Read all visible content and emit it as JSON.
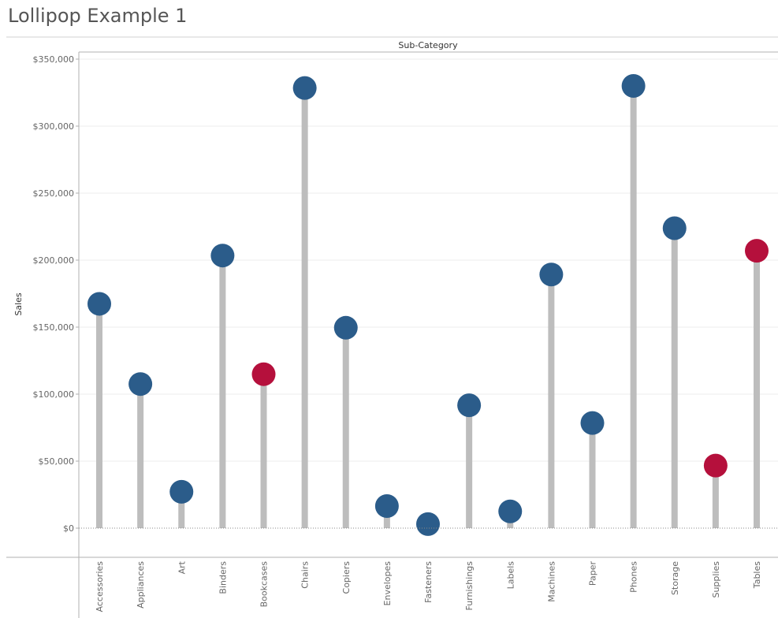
{
  "page": {
    "title": "Lollipop Example 1"
  },
  "chart_data": {
    "type": "lollipop",
    "title": "Lollipop Example 1",
    "column_header": "Sub-Category",
    "xlabel": "",
    "ylabel": "Sales",
    "ylim": [
      0,
      350000
    ],
    "yticks": [
      0,
      50000,
      100000,
      150000,
      200000,
      250000,
      300000,
      350000
    ],
    "ytick_labels": [
      "$0",
      "$50,000",
      "$100,000",
      "$150,000",
      "$200,000",
      "$250,000",
      "$300,000",
      "$350,000"
    ],
    "grid": true,
    "categories": [
      "Accessories",
      "Appliances",
      "Art",
      "Binders",
      "Bookcases",
      "Chairs",
      "Copiers",
      "Envelopes",
      "Fasteners",
      "Furnishings",
      "Labels",
      "Machines",
      "Paper",
      "Phones",
      "Storage",
      "Supplies",
      "Tables"
    ],
    "values": [
      167380,
      107532,
      27119,
      203413,
      114880,
      328449,
      149528,
      16476,
      3024,
      91705,
      12486,
      189239,
      78479,
      330007,
      223844,
      46674,
      206966
    ],
    "highlighted": [
      false,
      false,
      false,
      false,
      true,
      false,
      false,
      false,
      false,
      false,
      false,
      false,
      false,
      false,
      false,
      true,
      true
    ],
    "colors": {
      "normal": "#2b5c8a",
      "highlight": "#b5103c",
      "stem": "#bdbdbd"
    }
  }
}
